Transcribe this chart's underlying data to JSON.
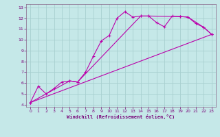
{
  "xlabel": "Windchill (Refroidissement éolien,°C)",
  "bg_color": "#c5e8e8",
  "grid_color": "#a8d0d0",
  "line_color": "#bb00aa",
  "spine_color": "#886688",
  "xlim": [
    -0.5,
    23.5
  ],
  "ylim": [
    3.8,
    13.3
  ],
  "xticks": [
    0,
    1,
    2,
    3,
    4,
    5,
    6,
    7,
    8,
    9,
    10,
    11,
    12,
    13,
    14,
    15,
    16,
    17,
    18,
    19,
    20,
    21,
    22,
    23
  ],
  "yticks": [
    4,
    5,
    6,
    7,
    8,
    9,
    10,
    11,
    12,
    13
  ],
  "series": [
    {
      "x": [
        0,
        1,
        2,
        3,
        4,
        5,
        6,
        7,
        8,
        9,
        10,
        11,
        12,
        13,
        14,
        15,
        16,
        17,
        18,
        19,
        20,
        21,
        22,
        23
      ],
      "y": [
        4.2,
        5.7,
        5.0,
        5.5,
        6.1,
        6.2,
        6.1,
        7.0,
        8.5,
        9.9,
        10.4,
        12.0,
        12.6,
        12.1,
        12.2,
        12.2,
        11.6,
        11.2,
        12.2,
        12.15,
        12.1,
        11.5,
        11.15,
        10.5
      ]
    },
    {
      "x": [
        0,
        5,
        6,
        14,
        15,
        19,
        20,
        22,
        23
      ],
      "y": [
        4.2,
        6.2,
        6.1,
        12.2,
        12.2,
        12.15,
        12.1,
        11.15,
        10.5
      ]
    },
    {
      "x": [
        0,
        23
      ],
      "y": [
        4.2,
        10.5
      ]
    }
  ]
}
